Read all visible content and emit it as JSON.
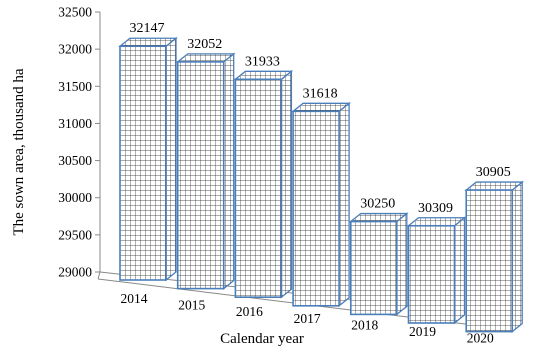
{
  "chart_data": {
    "type": "bar",
    "categories": [
      "2014",
      "2015",
      "2016",
      "2017",
      "2018",
      "2019",
      "2020"
    ],
    "values": [
      32147,
      32052,
      31933,
      31618,
      30250,
      30309,
      30905
    ],
    "data_labels": [
      "32147",
      "32052",
      "31933",
      "31618",
      "30250",
      "30309",
      "30905"
    ],
    "xlabel": "Calendar year",
    "ylabel": "The sown area, thousand ha",
    "ylim": [
      29000,
      32500
    ],
    "yticks": [
      29000,
      29500,
      30000,
      30500,
      31000,
      31500,
      32000,
      32500
    ],
    "ytick_labels": [
      "29000",
      "29500",
      "30000",
      "30500",
      "31000",
      "31500",
      "32000",
      "32500"
    ],
    "style": "3d-column",
    "bar_fill": "grid-pattern",
    "colors": {
      "bar_edge": "#4a7ebb",
      "bar_fill": "#ffffff",
      "grid_pattern": "#222222",
      "axis": "#888888"
    },
    "grid": false,
    "legend": "none"
  }
}
